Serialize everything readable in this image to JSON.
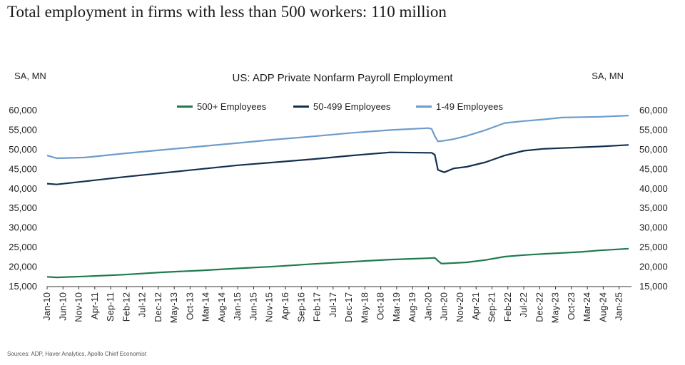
{
  "header": {
    "headline": "Total employment in firms with less than 500 workers: 110 million"
  },
  "footer": {
    "source": "Sources: ADP, Haver Analytics, Apollo Chief Economist"
  },
  "chart_data": {
    "type": "line",
    "title": "US: ADP Private Nonfarm Payroll Employment",
    "ylabel_left": "SA, MN",
    "ylabel_right": "SA, MN",
    "ylim": [
      15000,
      60000
    ],
    "yticks": [
      "15,000",
      "20,000",
      "25,000",
      "30,000",
      "35,000",
      "40,000",
      "45,000",
      "50,000",
      "55,000",
      "60,000"
    ],
    "xlim": [
      "Jan-10",
      "Apr-25"
    ],
    "xticks": [
      "Jan-10",
      "Jun-10",
      "Nov-10",
      "Apr-11",
      "Sep-11",
      "Feb-12",
      "Jul-12",
      "Dec-12",
      "May-13",
      "Oct-13",
      "Mar-14",
      "Aug-14",
      "Jan-15",
      "Jun-15",
      "Nov-15",
      "Apr-16",
      "Sep-16",
      "Feb-17",
      "Jul-17",
      "Dec-17",
      "May-18",
      "Oct-18",
      "Mar-19",
      "Aug-19",
      "Jan-20",
      "Jun-20",
      "Nov-20",
      "Apr-21",
      "Sep-21",
      "Feb-22",
      "Jul-22",
      "Dec-22",
      "May-23",
      "Oct-23",
      "Mar-24",
      "Aug-24",
      "Jan-25"
    ],
    "grid": false,
    "legend_position": "top-center",
    "series": [
      {
        "name": "500+ Employees",
        "color": "#1f7a4d",
        "points": [
          [
            "Jan-10",
            17500
          ],
          [
            "Apr-10",
            17350
          ],
          [
            "Jan-11",
            17600
          ],
          [
            "Jan-12",
            18050
          ],
          [
            "Jan-13",
            18650
          ],
          [
            "Jan-14",
            19100
          ],
          [
            "Jan-15",
            19650
          ],
          [
            "Jan-16",
            20150
          ],
          [
            "Jan-17",
            20800
          ],
          [
            "Jan-18",
            21350
          ],
          [
            "Jan-19",
            21900
          ],
          [
            "Jan-20",
            22250
          ],
          [
            "Mar-20",
            22350
          ],
          [
            "Apr-20",
            21600
          ],
          [
            "May-20",
            20900
          ],
          [
            "Jun-20",
            20900
          ],
          [
            "Jan-21",
            21200
          ],
          [
            "Jul-21",
            21800
          ],
          [
            "Jan-22",
            22650
          ],
          [
            "Jul-22",
            23050
          ],
          [
            "Jan-23",
            23350
          ],
          [
            "Jul-23",
            23600
          ],
          [
            "Jan-24",
            23850
          ],
          [
            "Jul-24",
            24250
          ],
          [
            "Apr-25",
            24700
          ]
        ]
      },
      {
        "name": "50-499 Employees",
        "color": "#14304f",
        "points": [
          [
            "Jan-10",
            41300
          ],
          [
            "Apr-10",
            41100
          ],
          [
            "Jan-11",
            41900
          ],
          [
            "Jan-12",
            43000
          ],
          [
            "Jan-13",
            44000
          ],
          [
            "Jan-14",
            45000
          ],
          [
            "Jan-15",
            46000
          ],
          [
            "Jan-16",
            46800
          ],
          [
            "Jan-17",
            47600
          ],
          [
            "Jan-18",
            48500
          ],
          [
            "Jan-19",
            49300
          ],
          [
            "Jan-20",
            49200
          ],
          [
            "Feb-20",
            49200
          ],
          [
            "Mar-20",
            48700
          ],
          [
            "Apr-20",
            44800
          ],
          [
            "Jun-20",
            44200
          ],
          [
            "Sep-20",
            45200
          ],
          [
            "Jan-21",
            45600
          ],
          [
            "Jul-21",
            46800
          ],
          [
            "Jan-22",
            48500
          ],
          [
            "Jul-22",
            49700
          ],
          [
            "Jan-23",
            50200
          ],
          [
            "Jul-23",
            50400
          ],
          [
            "Jan-24",
            50600
          ],
          [
            "Jul-24",
            50800
          ],
          [
            "Apr-25",
            51200
          ]
        ]
      },
      {
        "name": "1-49 Employees",
        "color": "#6d9ccb",
        "points": [
          [
            "Jan-10",
            48500
          ],
          [
            "Apr-10",
            47800
          ],
          [
            "Jan-11",
            48000
          ],
          [
            "Jan-12",
            49000
          ],
          [
            "Jan-13",
            49900
          ],
          [
            "Jan-14",
            50800
          ],
          [
            "Jan-15",
            51700
          ],
          [
            "Jan-16",
            52600
          ],
          [
            "Jan-17",
            53400
          ],
          [
            "Jan-18",
            54300
          ],
          [
            "Jan-19",
            55000
          ],
          [
            "Jan-20",
            55500
          ],
          [
            "Feb-20",
            55300
          ],
          [
            "Mar-20",
            53500
          ],
          [
            "Apr-20",
            52100
          ],
          [
            "Jun-20",
            52300
          ],
          [
            "Sep-20",
            52700
          ],
          [
            "Jan-21",
            53500
          ],
          [
            "Jul-21",
            55000
          ],
          [
            "Jan-22",
            56800
          ],
          [
            "Jul-22",
            57300
          ],
          [
            "Jan-23",
            57700
          ],
          [
            "Jul-23",
            58200
          ],
          [
            "Jan-24",
            58300
          ],
          [
            "Jul-24",
            58400
          ],
          [
            "Apr-25",
            58700
          ]
        ]
      }
    ]
  }
}
